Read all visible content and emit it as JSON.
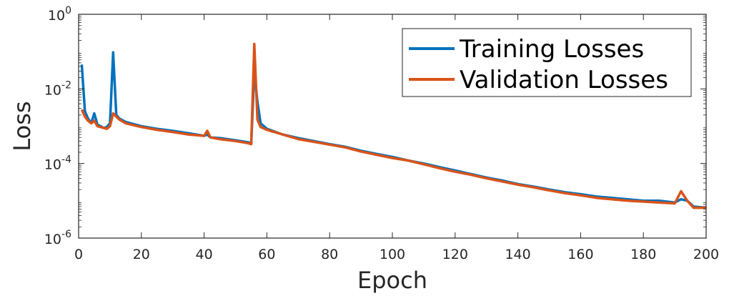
{
  "chart_data": {
    "type": "line",
    "xlabel": "Epoch",
    "ylabel": "Loss",
    "xlim": [
      0,
      200
    ],
    "ylim": [
      1e-06,
      1
    ],
    "yscale": "log",
    "grid": false,
    "legend_position": "top-right",
    "x_ticks": [
      0,
      20,
      40,
      60,
      80,
      100,
      120,
      140,
      160,
      180,
      200
    ],
    "x_tick_labels": [
      "0",
      "20",
      "40",
      "60",
      "80",
      "100",
      "120",
      "140",
      "160",
      "180",
      "200"
    ],
    "y_ticks": [
      {
        "value": 1e-06,
        "base": "10",
        "exp": "-6"
      },
      {
        "value": 0.0001,
        "base": "10",
        "exp": "-4"
      },
      {
        "value": 0.01,
        "base": "10",
        "exp": "-2"
      },
      {
        "value": 1,
        "base": "10",
        "exp": "0"
      }
    ],
    "series": [
      {
        "name": "Training Losses",
        "color": "#0072BD",
        "points": [
          [
            1,
            0.045
          ],
          [
            2,
            0.0025
          ],
          [
            3,
            0.0016
          ],
          [
            4,
            0.0012
          ],
          [
            5,
            0.0022
          ],
          [
            6,
            0.0011
          ],
          [
            7,
            0.001
          ],
          [
            8,
            0.0009
          ],
          [
            9,
            0.00095
          ],
          [
            10,
            0.0012
          ],
          [
            11,
            0.095
          ],
          [
            12,
            0.002
          ],
          [
            13,
            0.0016
          ],
          [
            15,
            0.0013
          ],
          [
            20,
            0.001
          ],
          [
            25,
            0.00085
          ],
          [
            30,
            0.00075
          ],
          [
            35,
            0.00065
          ],
          [
            40,
            0.00055
          ],
          [
            41,
            0.0006
          ],
          [
            42,
            0.0005
          ],
          [
            45,
            0.00048
          ],
          [
            50,
            0.00042
          ],
          [
            54,
            0.00037
          ],
          [
            55,
            0.00035
          ],
          [
            56,
            0.03
          ],
          [
            57,
            0.0045
          ],
          [
            58,
            0.0012
          ],
          [
            60,
            0.00085
          ],
          [
            65,
            0.0006
          ],
          [
            70,
            0.00048
          ],
          [
            75,
            0.0004
          ],
          [
            80,
            0.00033
          ],
          [
            85,
            0.00028
          ],
          [
            90,
            0.00022
          ],
          [
            95,
            0.00018
          ],
          [
            100,
            0.00015
          ],
          [
            105,
            0.00012
          ],
          [
            110,
            0.0001
          ],
          [
            115,
            8e-05
          ],
          [
            120,
            6.5e-05
          ],
          [
            125,
            5.2e-05
          ],
          [
            130,
            4.2e-05
          ],
          [
            135,
            3.5e-05
          ],
          [
            140,
            2.8e-05
          ],
          [
            145,
            2.4e-05
          ],
          [
            150,
            2e-05
          ],
          [
            155,
            1.7e-05
          ],
          [
            160,
            1.5e-05
          ],
          [
            165,
            1.3e-05
          ],
          [
            170,
            1.2e-05
          ],
          [
            175,
            1.1e-05
          ],
          [
            180,
            1e-05
          ],
          [
            185,
            1e-05
          ],
          [
            190,
            9e-06
          ],
          [
            192,
            1.1e-05
          ],
          [
            194,
            1e-05
          ],
          [
            196,
            7e-06
          ],
          [
            200,
            6.5e-06
          ]
        ]
      },
      {
        "name": "Validation Losses",
        "color": "#D95319",
        "points": [
          [
            1,
            0.0028
          ],
          [
            2,
            0.0018
          ],
          [
            3,
            0.0014
          ],
          [
            4,
            0.0012
          ],
          [
            5,
            0.0014
          ],
          [
            6,
            0.001
          ],
          [
            7,
            0.00095
          ],
          [
            8,
            0.0009
          ],
          [
            9,
            0.00085
          ],
          [
            10,
            0.001
          ],
          [
            11,
            0.0022
          ],
          [
            12,
            0.0018
          ],
          [
            13,
            0.0015
          ],
          [
            15,
            0.0012
          ],
          [
            20,
            0.00095
          ],
          [
            25,
            0.0008
          ],
          [
            30,
            0.0007
          ],
          [
            35,
            0.0006
          ],
          [
            40,
            0.00055
          ],
          [
            41,
            0.00075
          ],
          [
            42,
            0.0005
          ],
          [
            45,
            0.00045
          ],
          [
            50,
            0.0004
          ],
          [
            54,
            0.00035
          ],
          [
            55,
            0.00033
          ],
          [
            56,
            0.16
          ],
          [
            57,
            0.0015
          ],
          [
            58,
            0.00095
          ],
          [
            60,
            0.0008
          ],
          [
            65,
            0.0006
          ],
          [
            70,
            0.00045
          ],
          [
            75,
            0.00038
          ],
          [
            80,
            0.00032
          ],
          [
            85,
            0.00027
          ],
          [
            90,
            0.00021
          ],
          [
            95,
            0.00017
          ],
          [
            100,
            0.00014
          ],
          [
            105,
            0.00012
          ],
          [
            110,
            9.5e-05
          ],
          [
            115,
            7.5e-05
          ],
          [
            120,
            6e-05
          ],
          [
            125,
            5e-05
          ],
          [
            130,
            4e-05
          ],
          [
            135,
            3.3e-05
          ],
          [
            140,
            2.7e-05
          ],
          [
            145,
            2.3e-05
          ],
          [
            150,
            1.9e-05
          ],
          [
            155,
            1.6e-05
          ],
          [
            160,
            1.4e-05
          ],
          [
            165,
            1.2e-05
          ],
          [
            170,
            1.1e-05
          ],
          [
            175,
            1e-05
          ],
          [
            180,
            9.5e-06
          ],
          [
            185,
            9e-06
          ],
          [
            190,
            8.5e-06
          ],
          [
            192,
            1.8e-05
          ],
          [
            194,
            1e-05
          ],
          [
            196,
            6.5e-06
          ],
          [
            200,
            6.5e-06
          ]
        ]
      }
    ]
  }
}
